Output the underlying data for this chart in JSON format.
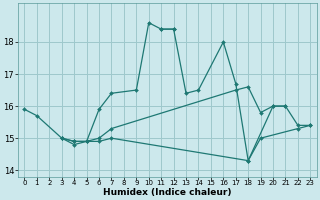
{
  "xlabel": "Humidex (Indice chaleur)",
  "background_color": "#cce8ec",
  "grid_color": "#9ec8cc",
  "line_color": "#1e7873",
  "xlim": [
    -0.5,
    23.5
  ],
  "ylim": [
    13.8,
    19.2
  ],
  "xticks": [
    0,
    1,
    2,
    3,
    4,
    5,
    6,
    7,
    8,
    9,
    10,
    11,
    12,
    13,
    14,
    15,
    16,
    17,
    18,
    19,
    20,
    21,
    22,
    23
  ],
  "yticks": [
    14,
    15,
    16,
    17,
    18
  ],
  "series": [
    {
      "x": [
        0,
        1,
        3,
        4,
        5,
        6,
        7,
        9,
        10,
        11,
        12
      ],
      "y": [
        15.9,
        15.7,
        15.0,
        14.8,
        14.9,
        15.9,
        16.4,
        16.5,
        18.6,
        18.4,
        18.4
      ]
    },
    {
      "x": [
        11,
        12,
        13,
        14,
        16,
        17,
        18,
        20,
        21
      ],
      "y": [
        18.4,
        18.4,
        16.4,
        16.5,
        18.0,
        16.7,
        14.3,
        16.0,
        16.0
      ]
    },
    {
      "x": [
        3,
        4,
        5,
        6,
        7,
        17,
        18,
        19,
        20,
        21,
        22,
        23
      ],
      "y": [
        15.0,
        14.9,
        14.9,
        15.0,
        15.3,
        16.5,
        16.6,
        15.8,
        16.0,
        16.0,
        15.4,
        15.4
      ]
    },
    {
      "x": [
        3,
        4,
        5,
        6,
        7,
        18,
        19,
        22,
        23
      ],
      "y": [
        15.0,
        14.9,
        14.9,
        14.9,
        15.0,
        14.3,
        15.0,
        15.3,
        15.4
      ]
    }
  ]
}
